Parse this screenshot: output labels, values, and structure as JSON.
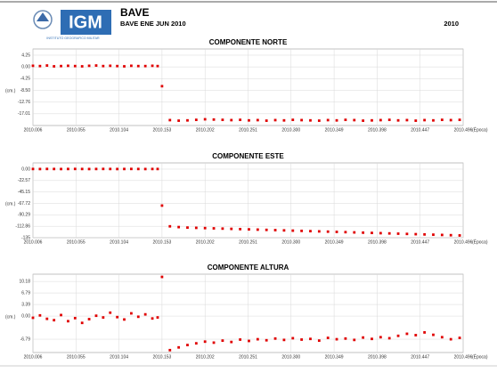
{
  "header": {
    "title": "BAVE",
    "subtitle": "BAVE ENE JUN 2010",
    "year": "2010",
    "logo": "IGM",
    "institute": "INSTITUTO GEOGRAFICO MILITAR"
  },
  "chart_data": [
    {
      "type": "scatter",
      "title": "COMPONENTE NORTE",
      "y_label": "(cm.)",
      "x_label": "(Época)",
      "color": "#e00000",
      "grid": true,
      "xlim": [
        2010.006,
        2010.496
      ],
      "xticks": [
        2010.006,
        2010.055,
        2010.104,
        2010.153,
        2010.202,
        2010.251,
        {
          "value": 2010.3,
          "label": "2010.300"
        },
        2010.349,
        2010.398,
        2010.447,
        2010.496
      ],
      "ylim": [
        -21.26,
        6.5
      ],
      "yticks": [
        4.25,
        {
          "value": 0,
          "label": "0.00"
        },
        -4.25,
        {
          "value": -8.5,
          "label": "-8.50"
        },
        -12.76,
        -17.01
      ],
      "x": [
        2010.006,
        2010.014,
        2010.022,
        2010.03,
        2010.038,
        2010.046,
        2010.054,
        2010.062,
        2010.07,
        2010.078,
        2010.086,
        2010.094,
        2010.102,
        2010.11,
        2010.118,
        2010.126,
        2010.134,
        2010.142,
        2010.148,
        2010.153,
        2010.162,
        2010.172,
        2010.182,
        2010.192,
        2010.202,
        2010.212,
        2010.222,
        2010.232,
        2010.242,
        2010.252,
        2010.262,
        2010.272,
        2010.282,
        2010.292,
        2010.302,
        2010.312,
        2010.322,
        2010.332,
        2010.342,
        2010.352,
        2010.362,
        2010.372,
        2010.382,
        2010.392,
        2010.402,
        2010.412,
        2010.422,
        2010.432,
        2010.442,
        2010.452,
        2010.462,
        2010.472,
        2010.482,
        2010.492
      ],
      "values": [
        0.4,
        0.3,
        0.5,
        0.2,
        0.3,
        0.4,
        0.3,
        0.2,
        0.4,
        0.5,
        0.3,
        0.4,
        0.3,
        0.2,
        0.4,
        0.3,
        0.3,
        0.4,
        0.3,
        -7.0,
        -19.3,
        -19.5,
        -19.4,
        -19.2,
        -19.0,
        -19.1,
        -19.2,
        -19.3,
        -19.2,
        -19.4,
        -19.3,
        -19.5,
        -19.3,
        -19.4,
        -19.2,
        -19.3,
        -19.4,
        -19.5,
        -19.3,
        -19.4,
        -19.2,
        -19.3,
        -19.5,
        -19.4,
        -19.3,
        -19.2,
        -19.4,
        -19.3,
        -19.5,
        -19.3,
        -19.4,
        -19.2,
        -19.3,
        -19.2
      ]
    },
    {
      "type": "scatter",
      "title": "COMPONENTE ESTE",
      "y_label": "(cm.)",
      "x_label": "(Época)",
      "color": "#e00000",
      "grid": true,
      "xlim": [
        2010.006,
        2010.496
      ],
      "xticks": [
        2010.006,
        2010.055,
        2010.104,
        2010.153,
        2010.202,
        2010.251,
        {
          "value": 2010.3,
          "label": "2010.300"
        },
        2010.349,
        2010.398,
        2010.447,
        2010.496
      ],
      "ylim": [
        -135.44,
        12.3
      ],
      "yticks": [
        {
          "value": 0,
          "label": "0.00"
        },
        -22.57,
        -45.15,
        -67.72,
        -90.29,
        -112.86,
        {
          "value": -135.44,
          "label": "-135"
        }
      ],
      "x": [
        2010.006,
        2010.014,
        2010.022,
        2010.03,
        2010.038,
        2010.046,
        2010.054,
        2010.062,
        2010.07,
        2010.078,
        2010.086,
        2010.094,
        2010.102,
        2010.11,
        2010.118,
        2010.126,
        2010.134,
        2010.142,
        2010.148,
        2010.153,
        2010.162,
        2010.172,
        2010.182,
        2010.192,
        2010.202,
        2010.212,
        2010.222,
        2010.232,
        2010.242,
        2010.252,
        2010.262,
        2010.272,
        2010.282,
        2010.292,
        2010.302,
        2010.312,
        2010.322,
        2010.332,
        2010.342,
        2010.352,
        2010.362,
        2010.372,
        2010.382,
        2010.392,
        2010.402,
        2010.412,
        2010.422,
        2010.432,
        2010.442,
        2010.452,
        2010.462,
        2010.472,
        2010.482,
        2010.492
      ],
      "values": [
        0.3,
        0.2,
        0.4,
        0.3,
        0.2,
        0.3,
        0.4,
        0.3,
        0.2,
        0.3,
        0.4,
        0.3,
        0.2,
        0.3,
        0.4,
        0.3,
        0.2,
        0.3,
        0.3,
        -72.0,
        -113,
        -114.5,
        -115.5,
        -116,
        -116.5,
        -117,
        -117.5,
        -118,
        -118.5,
        -119,
        -119.5,
        -120,
        -120.5,
        -121,
        -121.5,
        -122,
        -122.5,
        -123,
        -123.5,
        -124,
        -124.5,
        -125,
        -125.5,
        -126,
        -126.5,
        -127,
        -127.5,
        -128,
        -128.5,
        -129,
        -129.5,
        -130,
        -130.5,
        -131
      ]
    },
    {
      "type": "scatter",
      "title": "COMPONENTE ALTURA",
      "y_label": "(cm.)",
      "x_label": "(Época)",
      "color": "#e00000",
      "grid": true,
      "xlim": [
        2010.006,
        2010.496
      ],
      "xticks": [
        2010.006,
        2010.055,
        2010.104,
        2010.153,
        2010.202,
        2010.251,
        {
          "value": 2010.3,
          "label": "2010.300"
        },
        2010.349,
        2010.398,
        2010.447,
        2010.496
      ],
      "ylim": [
        -10.7,
        12.3
      ],
      "yticks": [
        10.18,
        6.79,
        3.39,
        {
          "value": 0,
          "label": "0.00"
        },
        -6.79
      ],
      "x": [
        2010.006,
        2010.014,
        2010.022,
        2010.03,
        2010.038,
        2010.046,
        2010.054,
        2010.062,
        2010.07,
        2010.078,
        2010.086,
        2010.094,
        2010.102,
        2010.11,
        2010.118,
        2010.126,
        2010.134,
        2010.142,
        2010.148,
        2010.153,
        2010.162,
        2010.172,
        2010.182,
        2010.192,
        2010.202,
        2010.212,
        2010.222,
        2010.232,
        2010.242,
        2010.252,
        2010.262,
        2010.272,
        2010.282,
        2010.292,
        2010.302,
        2010.312,
        2010.322,
        2010.332,
        2010.342,
        2010.352,
        2010.362,
        2010.372,
        2010.382,
        2010.392,
        2010.402,
        2010.412,
        2010.422,
        2010.432,
        2010.442,
        2010.452,
        2010.462,
        2010.472,
        2010.482,
        2010.492
      ],
      "values": [
        -0.5,
        0.2,
        -0.8,
        -1.2,
        0.3,
        -1.5,
        -0.6,
        -2.0,
        -0.9,
        0.1,
        -0.4,
        1.0,
        -0.3,
        -1.0,
        0.8,
        -0.2,
        0.5,
        -0.7,
        -0.4,
        11.5,
        -10.0,
        -9.2,
        -8.5,
        -8.0,
        -7.5,
        -7.8,
        -7.2,
        -7.6,
        -6.9,
        -7.3,
        -6.8,
        -7.1,
        -6.6,
        -7.0,
        -6.5,
        -6.9,
        -6.7,
        -7.2,
        -6.4,
        -6.8,
        -6.6,
        -7.0,
        -6.3,
        -6.7,
        -6.2,
        -6.5,
        -5.8,
        -5.2,
        -5.6,
        -4.8,
        -5.5,
        -6.2,
        -6.8,
        -6.4
      ]
    }
  ]
}
